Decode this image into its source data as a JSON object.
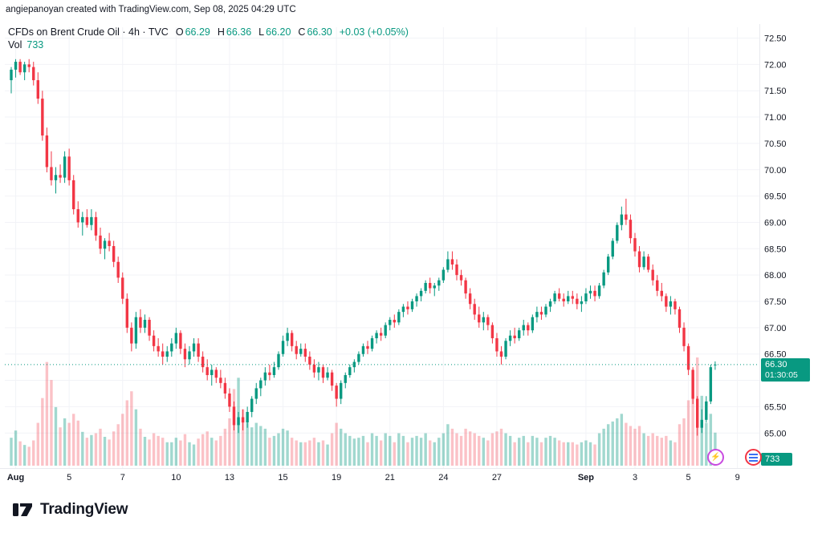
{
  "attribution": "angiepanoyan created with TradingView.com, Sep 08, 2025 04:29 UTC",
  "legend": {
    "symbol": "CFDs on Brent Crude Oil · 4h · TVC",
    "o_label": "O",
    "o_value": "66.29",
    "h_label": "H",
    "h_value": "66.36",
    "l_label": "L",
    "l_value": "66.20",
    "c_label": "C",
    "c_value": "66.30",
    "change": "+0.03 (+0.05%)",
    "vol_label": "Vol",
    "vol_value": "733"
  },
  "badges": {
    "last_price": "66.30",
    "countdown": "01:30:05",
    "volume": "733"
  },
  "logo": {
    "wordmark": "TradingView"
  },
  "colors": {
    "up": "#089981",
    "down": "#F23645",
    "text": "#131722",
    "grid": "#f2f3f7"
  },
  "chart_data": {
    "type": "candlestick",
    "title": "CFDs on Brent Crude Oil",
    "interval": "4h",
    "exchange": "TVC",
    "ylim": [
      65.0,
      72.5
    ],
    "last_price": 66.3,
    "last_volume": 733,
    "y_ticks": [
      "72.50",
      "72.00",
      "71.50",
      "71.00",
      "70.50",
      "70.00",
      "69.50",
      "69.00",
      "68.50",
      "68.00",
      "67.50",
      "67.00",
      "66.50",
      "66.00",
      "65.50",
      "65.00"
    ],
    "x_ticks": [
      {
        "label": "Aug",
        "i": 1,
        "bold": true
      },
      {
        "label": "5",
        "i": 13
      },
      {
        "label": "7",
        "i": 25
      },
      {
        "label": "10",
        "i": 37
      },
      {
        "label": "13",
        "i": 49
      },
      {
        "label": "15",
        "i": 61
      },
      {
        "label": "19",
        "i": 73
      },
      {
        "label": "21",
        "i": 85
      },
      {
        "label": "24",
        "i": 97
      },
      {
        "label": "27",
        "i": 109
      },
      {
        "label": "Sep",
        "i": 129,
        "bold": true
      },
      {
        "label": "3",
        "i": 140
      },
      {
        "label": "5",
        "i": 152
      },
      {
        "label": "9",
        "i": 163
      }
    ],
    "candles": [
      [
        71.7,
        71.95,
        71.45,
        71.9,
        620
      ],
      [
        71.9,
        72.1,
        71.75,
        72.05,
        780
      ],
      [
        72.05,
        72.1,
        71.8,
        71.85,
        540
      ],
      [
        71.85,
        72.05,
        71.7,
        72.0,
        460
      ],
      [
        72.0,
        72.1,
        71.85,
        71.95,
        420
      ],
      [
        71.95,
        72.05,
        71.6,
        71.7,
        560
      ],
      [
        71.7,
        71.85,
        71.25,
        71.35,
        950
      ],
      [
        71.35,
        71.5,
        70.55,
        70.65,
        1500
      ],
      [
        70.65,
        70.8,
        69.95,
        70.05,
        2300
      ],
      [
        70.05,
        70.35,
        69.7,
        69.8,
        1900
      ],
      [
        69.8,
        70.05,
        69.55,
        69.9,
        1300
      ],
      [
        69.9,
        70.1,
        69.75,
        69.85,
        850
      ],
      [
        69.85,
        70.35,
        69.75,
        70.25,
        1050
      ],
      [
        70.25,
        70.4,
        69.7,
        69.8,
        950
      ],
      [
        69.8,
        69.9,
        69.15,
        69.25,
        1150
      ],
      [
        69.25,
        69.4,
        68.9,
        69.0,
        1000
      ],
      [
        69.0,
        69.2,
        68.75,
        69.1,
        750
      ],
      [
        69.1,
        69.25,
        68.9,
        68.95,
        620
      ],
      [
        68.95,
        69.25,
        68.85,
        69.1,
        680
      ],
      [
        69.1,
        69.2,
        68.65,
        68.75,
        720
      ],
      [
        68.75,
        68.9,
        68.4,
        68.5,
        820
      ],
      [
        68.5,
        68.7,
        68.3,
        68.65,
        640
      ],
      [
        68.65,
        68.8,
        68.45,
        68.55,
        580
      ],
      [
        68.55,
        68.65,
        68.15,
        68.25,
        760
      ],
      [
        68.25,
        68.35,
        67.85,
        67.95,
        920
      ],
      [
        67.95,
        68.05,
        67.45,
        67.55,
        1150
      ],
      [
        67.55,
        67.65,
        66.9,
        67.0,
        1450
      ],
      [
        67.0,
        67.1,
        66.55,
        66.7,
        1650
      ],
      [
        66.7,
        67.3,
        66.6,
        67.2,
        1250
      ],
      [
        67.2,
        67.35,
        66.9,
        67.0,
        820
      ],
      [
        67.0,
        67.25,
        66.9,
        67.15,
        640
      ],
      [
        67.15,
        67.2,
        66.75,
        66.85,
        580
      ],
      [
        66.85,
        66.95,
        66.55,
        66.65,
        720
      ],
      [
        66.65,
        66.8,
        66.45,
        66.55,
        660
      ],
      [
        66.55,
        66.7,
        66.3,
        66.45,
        620
      ],
      [
        66.45,
        66.65,
        66.35,
        66.55,
        520
      ],
      [
        66.55,
        66.8,
        66.45,
        66.7,
        520
      ],
      [
        66.7,
        67.0,
        66.6,
        66.9,
        620
      ],
      [
        66.9,
        66.95,
        66.5,
        66.6,
        560
      ],
      [
        66.6,
        66.7,
        66.25,
        66.4,
        700
      ],
      [
        66.4,
        66.65,
        66.3,
        66.55,
        520
      ],
      [
        66.55,
        66.8,
        66.45,
        66.7,
        470
      ],
      [
        66.7,
        66.8,
        66.35,
        66.45,
        600
      ],
      [
        66.45,
        66.55,
        66.15,
        66.25,
        700
      ],
      [
        66.25,
        66.4,
        66.0,
        66.1,
        760
      ],
      [
        66.1,
        66.3,
        65.9,
        66.2,
        620
      ],
      [
        66.2,
        66.25,
        65.95,
        66.05,
        560
      ],
      [
        66.05,
        66.2,
        65.85,
        65.95,
        660
      ],
      [
        65.95,
        66.05,
        65.65,
        65.75,
        820
      ],
      [
        65.75,
        65.85,
        65.4,
        65.5,
        1050
      ],
      [
        65.5,
        65.6,
        65.05,
        65.15,
        1700
      ],
      [
        65.15,
        65.4,
        65.0,
        65.3,
        1950
      ],
      [
        65.3,
        65.45,
        65.05,
        65.2,
        1250
      ],
      [
        65.2,
        65.5,
        65.1,
        65.4,
        950
      ],
      [
        65.4,
        65.7,
        65.3,
        65.65,
        850
      ],
      [
        65.65,
        65.95,
        65.55,
        65.85,
        950
      ],
      [
        65.85,
        66.05,
        65.7,
        66.0,
        880
      ],
      [
        66.0,
        66.25,
        65.9,
        66.15,
        820
      ],
      [
        66.15,
        66.3,
        66.0,
        66.1,
        620
      ],
      [
        66.1,
        66.35,
        66.05,
        66.25,
        660
      ],
      [
        66.25,
        66.55,
        66.2,
        66.5,
        720
      ],
      [
        66.5,
        66.85,
        66.45,
        66.75,
        820
      ],
      [
        66.75,
        67.0,
        66.65,
        66.9,
        780
      ],
      [
        66.9,
        66.95,
        66.55,
        66.65,
        620
      ],
      [
        66.65,
        66.75,
        66.4,
        66.5,
        560
      ],
      [
        66.5,
        66.7,
        66.45,
        66.6,
        520
      ],
      [
        66.6,
        66.7,
        66.35,
        66.45,
        520
      ],
      [
        66.45,
        66.55,
        66.2,
        66.3,
        560
      ],
      [
        66.3,
        66.4,
        66.05,
        66.15,
        620
      ],
      [
        66.15,
        66.35,
        66.0,
        66.25,
        520
      ],
      [
        66.25,
        66.3,
        65.95,
        66.05,
        560
      ],
      [
        66.05,
        66.25,
        66.0,
        66.15,
        470
      ],
      [
        66.15,
        66.2,
        65.8,
        65.9,
        720
      ],
      [
        65.9,
        65.95,
        65.5,
        65.65,
        950
      ],
      [
        65.65,
        66.0,
        65.55,
        65.95,
        820
      ],
      [
        65.95,
        66.15,
        65.85,
        66.1,
        720
      ],
      [
        66.1,
        66.3,
        66.05,
        66.25,
        660
      ],
      [
        66.25,
        66.4,
        66.15,
        66.35,
        600
      ],
      [
        66.35,
        66.55,
        66.3,
        66.5,
        620
      ],
      [
        66.5,
        66.7,
        66.45,
        66.65,
        660
      ],
      [
        66.65,
        66.75,
        66.5,
        66.6,
        520
      ],
      [
        66.6,
        66.85,
        66.55,
        66.8,
        720
      ],
      [
        66.8,
        66.95,
        66.7,
        66.9,
        660
      ],
      [
        66.9,
        67.0,
        66.75,
        66.85,
        560
      ],
      [
        66.85,
        67.1,
        66.8,
        67.05,
        720
      ],
      [
        67.05,
        67.2,
        66.95,
        67.15,
        660
      ],
      [
        67.15,
        67.25,
        67.0,
        67.1,
        520
      ],
      [
        67.1,
        67.35,
        67.05,
        67.3,
        720
      ],
      [
        67.3,
        67.45,
        67.2,
        67.4,
        660
      ],
      [
        67.4,
        67.5,
        67.25,
        67.35,
        520
      ],
      [
        67.35,
        67.55,
        67.3,
        67.5,
        620
      ],
      [
        67.5,
        67.65,
        67.4,
        67.6,
        660
      ],
      [
        67.6,
        67.75,
        67.5,
        67.7,
        620
      ],
      [
        67.7,
        67.9,
        67.65,
        67.85,
        720
      ],
      [
        67.85,
        67.95,
        67.65,
        67.75,
        560
      ],
      [
        67.75,
        67.85,
        67.6,
        67.8,
        520
      ],
      [
        67.8,
        67.95,
        67.7,
        67.9,
        620
      ],
      [
        67.9,
        68.15,
        67.85,
        68.1,
        720
      ],
      [
        68.1,
        68.45,
        68.05,
        68.3,
        920
      ],
      [
        68.3,
        68.45,
        68.1,
        68.2,
        820
      ],
      [
        68.2,
        68.3,
        67.9,
        68.0,
        720
      ],
      [
        68.0,
        68.1,
        67.8,
        67.9,
        660
      ],
      [
        67.9,
        67.95,
        67.55,
        67.65,
        820
      ],
      [
        67.65,
        67.75,
        67.35,
        67.45,
        760
      ],
      [
        67.45,
        67.55,
        67.15,
        67.25,
        720
      ],
      [
        67.25,
        67.4,
        67.0,
        67.1,
        660
      ],
      [
        67.1,
        67.3,
        66.95,
        67.2,
        620
      ],
      [
        67.2,
        67.25,
        66.95,
        67.05,
        560
      ],
      [
        67.05,
        67.1,
        66.7,
        66.8,
        720
      ],
      [
        66.8,
        66.9,
        66.45,
        66.55,
        760
      ],
      [
        66.55,
        66.65,
        66.3,
        66.45,
        820
      ],
      [
        66.45,
        66.8,
        66.4,
        66.75,
        720
      ],
      [
        66.75,
        66.95,
        66.65,
        66.85,
        660
      ],
      [
        66.85,
        67.0,
        66.7,
        66.8,
        520
      ],
      [
        66.8,
        67.0,
        66.75,
        66.95,
        620
      ],
      [
        66.95,
        67.15,
        66.85,
        67.05,
        660
      ],
      [
        67.05,
        67.1,
        66.85,
        66.95,
        520
      ],
      [
        66.95,
        67.25,
        66.9,
        67.2,
        660
      ],
      [
        67.2,
        67.4,
        67.1,
        67.3,
        620
      ],
      [
        67.3,
        67.4,
        67.15,
        67.25,
        520
      ],
      [
        67.25,
        67.45,
        67.2,
        67.4,
        620
      ],
      [
        67.4,
        67.55,
        67.3,
        67.5,
        660
      ],
      [
        67.5,
        67.7,
        67.45,
        67.65,
        620
      ],
      [
        67.65,
        67.75,
        67.5,
        67.55,
        560
      ],
      [
        67.55,
        67.65,
        67.4,
        67.5,
        520
      ],
      [
        67.5,
        67.7,
        67.45,
        67.6,
        520
      ],
      [
        67.6,
        67.7,
        67.45,
        67.55,
        520
      ],
      [
        67.55,
        67.65,
        67.35,
        67.45,
        470
      ],
      [
        67.45,
        67.6,
        67.3,
        67.5,
        520
      ],
      [
        67.5,
        67.75,
        67.45,
        67.65,
        560
      ],
      [
        67.65,
        67.8,
        67.55,
        67.7,
        520
      ],
      [
        67.7,
        67.8,
        67.5,
        67.6,
        470
      ],
      [
        67.6,
        67.85,
        67.55,
        67.8,
        720
      ],
      [
        67.8,
        68.1,
        67.75,
        68.05,
        820
      ],
      [
        68.05,
        68.4,
        68.0,
        68.35,
        920
      ],
      [
        68.35,
        68.7,
        68.3,
        68.65,
        980
      ],
      [
        68.65,
        69.0,
        68.6,
        68.95,
        1050
      ],
      [
        68.95,
        69.3,
        68.85,
        69.15,
        1150
      ],
      [
        69.15,
        69.45,
        68.95,
        69.05,
        950
      ],
      [
        69.05,
        69.15,
        68.6,
        68.7,
        880
      ],
      [
        68.7,
        68.8,
        68.35,
        68.45,
        820
      ],
      [
        68.45,
        68.55,
        68.05,
        68.15,
        880
      ],
      [
        68.15,
        68.45,
        68.1,
        68.35,
        720
      ],
      [
        68.35,
        68.4,
        68.05,
        68.1,
        660
      ],
      [
        68.1,
        68.2,
        67.8,
        67.9,
        720
      ],
      [
        67.9,
        68.0,
        67.6,
        67.7,
        660
      ],
      [
        67.7,
        67.85,
        67.5,
        67.6,
        620
      ],
      [
        67.6,
        67.65,
        67.3,
        67.4,
        660
      ],
      [
        67.4,
        67.6,
        67.25,
        67.5,
        560
      ],
      [
        67.5,
        67.55,
        67.25,
        67.35,
        520
      ],
      [
        67.35,
        67.4,
        66.9,
        67.0,
        920
      ],
      [
        67.0,
        67.1,
        66.55,
        66.65,
        1050
      ],
      [
        66.65,
        66.7,
        66.1,
        66.2,
        1450
      ],
      [
        66.2,
        66.25,
        65.55,
        65.65,
        1950
      ],
      [
        65.65,
        65.7,
        64.95,
        65.1,
        2400
      ],
      [
        65.1,
        65.45,
        65.0,
        65.25,
        1550
      ],
      [
        65.25,
        65.7,
        65.2,
        65.6,
        950
      ],
      [
        65.6,
        66.3,
        65.55,
        66.25,
        1150
      ],
      [
        66.29,
        66.36,
        66.2,
        66.3,
        733
      ]
    ]
  }
}
